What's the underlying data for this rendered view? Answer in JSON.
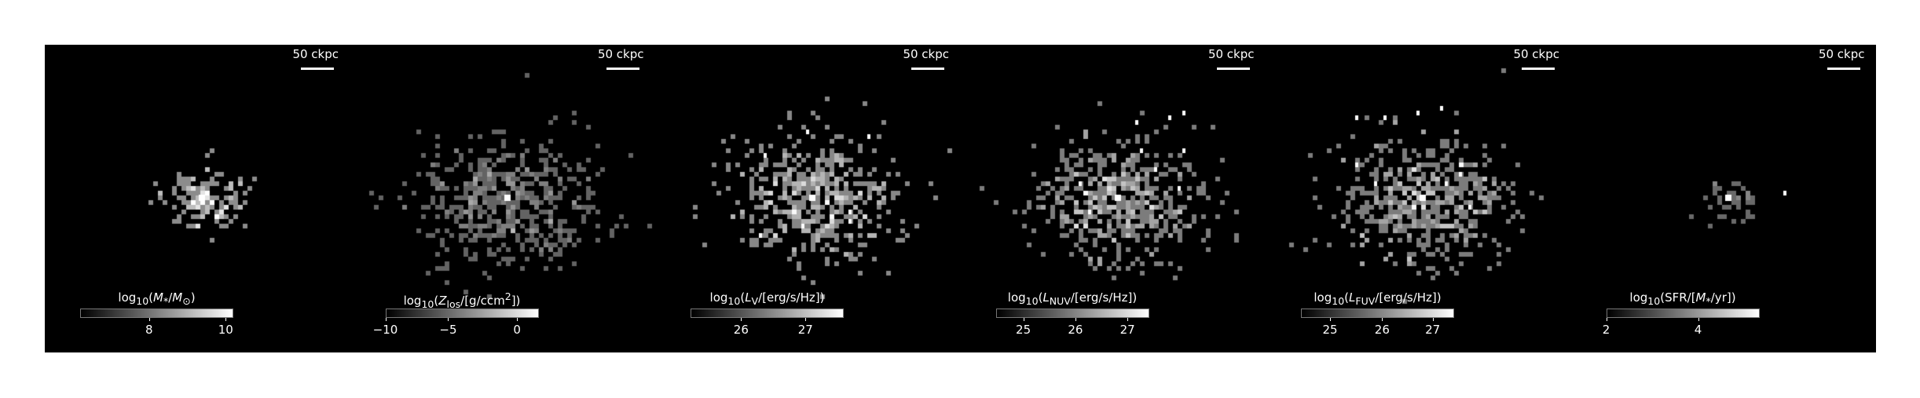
{
  "panels": [
    {
      "quantity": "stellar-mass",
      "scale_label": "50 ckpc",
      "cbar_html": "log<sub>10</sub>(<i>M</i><sub>*</sub>/<i>M</i><sub>⊙</sub>)",
      "ticks": [
        {
          "v": 0.45,
          "t": "8"
        },
        {
          "v": 0.95,
          "t": "10"
        }
      ],
      "spread": 22,
      "count": 150,
      "peak": 0.85,
      "white_pixels": 0
    },
    {
      "quantity": "metallicity",
      "scale_label": "50 ckpc",
      "cbar_html": "log<sub>10</sub>(<i>Z</i><sub>los</sub>/[g/ccm<sup>2</sup>])",
      "ticks": [
        {
          "v": 0.0,
          "t": "−10"
        },
        {
          "v": 0.41,
          "t": "−5"
        },
        {
          "v": 0.86,
          "t": "0"
        }
      ],
      "spread": 48,
      "count": 520,
      "peak": 0.55,
      "white_pixels": 0
    },
    {
      "quantity": "v-band-luminosity",
      "scale_label": "50 ckpc",
      "cbar_html": "log<sub>10</sub>(<i>L</i><sub>V</sub>/[erg/s/Hz])",
      "ticks": [
        {
          "v": 0.33,
          "t": "26"
        },
        {
          "v": 0.75,
          "t": "27"
        }
      ],
      "spread": 46,
      "count": 480,
      "peak": 0.8,
      "white_pixels": 7
    },
    {
      "quantity": "nuv-luminosity",
      "scale_label": "50 ckpc",
      "cbar_html": "log<sub>10</sub>(<i>L</i><sub>NUV</sub>/[erg/s/Hz])",
      "ticks": [
        {
          "v": 0.18,
          "t": "25"
        },
        {
          "v": 0.52,
          "t": "26"
        },
        {
          "v": 0.86,
          "t": "27"
        }
      ],
      "spread": 48,
      "count": 520,
      "peak": 0.8,
      "white_pixels": 9
    },
    {
      "quantity": "fuv-luminosity",
      "scale_label": "50 ckpc",
      "cbar_html": "log<sub>10</sub>(<i>L</i><sub>FUV</sub>/[erg/s/Hz])",
      "ticks": [
        {
          "v": 0.19,
          "t": "25"
        },
        {
          "v": 0.53,
          "t": "26"
        },
        {
          "v": 0.86,
          "t": "27"
        }
      ],
      "spread": 48,
      "count": 520,
      "peak": 0.8,
      "white_pixels": 9
    },
    {
      "quantity": "star-formation-rate",
      "scale_label": "50 ckpc",
      "cbar_html": "log<sub>10</sub>(SFR/[<i>M</i><sub>*</sub>/yr])",
      "ticks": [
        {
          "v": 0.0,
          "t": "2"
        },
        {
          "v": 0.6,
          "t": "4"
        }
      ],
      "spread": 18,
      "count": 40,
      "peak": 0.35,
      "white_pixels": 1
    }
  ],
  "colors": {
    "background": "#000000",
    "foreground": "#ffffff",
    "page": "#ffffff"
  }
}
